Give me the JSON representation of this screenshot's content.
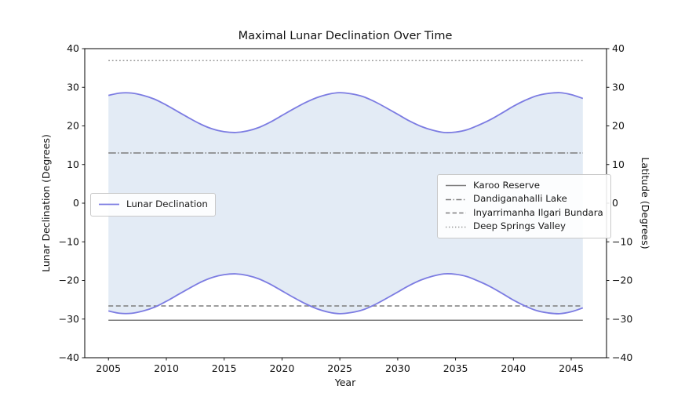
{
  "chart_data": {
    "type": "line",
    "title": "Maximal Lunar Declination Over Time",
    "xlabel": "Year",
    "ylabel_left": "Lunar Declination (Degrees)",
    "ylabel_right": "Latitude (Degrees)",
    "xlim": [
      2002.95,
      2048.05
    ],
    "ylim": [
      -40,
      40
    ],
    "x_ticks": [
      2005,
      2010,
      2015,
      2020,
      2025,
      2030,
      2035,
      2040,
      2045
    ],
    "y_ticks": [
      -40,
      -30,
      -20,
      -10,
      0,
      10,
      20,
      30,
      40
    ],
    "grid": false,
    "line_color": "#7c7ce2",
    "band_fill": "#e3ebf5",
    "legend1": {
      "label": "Lunar Declination",
      "position": "center left"
    },
    "series": [
      {
        "name": "Maximal Lunar Declination (north limit)",
        "x": [
          2005,
          2006,
          2007,
          2008,
          2009,
          2010,
          2011,
          2012,
          2013,
          2014,
          2015,
          2016,
          2017,
          2018,
          2019,
          2020,
          2021,
          2022,
          2023,
          2024,
          2025,
          2026,
          2027,
          2028,
          2029,
          2030,
          2031,
          2032,
          2033,
          2034,
          2035,
          2036,
          2037,
          2038,
          2039,
          2040,
          2041,
          2042,
          2043,
          2044,
          2045,
          2046
        ],
        "y": [
          27.9,
          28.5,
          28.5,
          27.9,
          26.9,
          25.4,
          23.7,
          22.0,
          20.4,
          19.2,
          18.5,
          18.3,
          18.7,
          19.6,
          21.0,
          22.7,
          24.4,
          26.0,
          27.3,
          28.2,
          28.6,
          28.3,
          27.6,
          26.3,
          24.7,
          23.0,
          21.3,
          19.9,
          18.9,
          18.3,
          18.4,
          19.0,
          20.2,
          21.6,
          23.3,
          25.1,
          26.6,
          27.8,
          28.4,
          28.6,
          28.1,
          27.1
        ]
      },
      {
        "name": "Maximal Lunar Declination (south limit)",
        "x": [
          2005,
          2006,
          2007,
          2008,
          2009,
          2010,
          2011,
          2012,
          2013,
          2014,
          2015,
          2016,
          2017,
          2018,
          2019,
          2020,
          2021,
          2022,
          2023,
          2024,
          2025,
          2026,
          2027,
          2028,
          2029,
          2030,
          2031,
          2032,
          2033,
          2034,
          2035,
          2036,
          2037,
          2038,
          2039,
          2040,
          2041,
          2042,
          2043,
          2044,
          2045,
          2046
        ],
        "y": [
          -27.9,
          -28.5,
          -28.5,
          -27.9,
          -26.9,
          -25.4,
          -23.7,
          -22.0,
          -20.4,
          -19.2,
          -18.5,
          -18.3,
          -18.7,
          -19.6,
          -21.0,
          -22.7,
          -24.4,
          -26.0,
          -27.3,
          -28.2,
          -28.6,
          -28.3,
          -27.6,
          -26.3,
          -24.7,
          -23.0,
          -21.3,
          -19.9,
          -18.9,
          -18.3,
          -18.4,
          -19.0,
          -20.2,
          -21.6,
          -23.3,
          -25.1,
          -26.6,
          -27.8,
          -28.4,
          -28.6,
          -28.1,
          -27.1
        ]
      }
    ],
    "reference_lines": [
      {
        "label": "Karoo Reserve",
        "latitude": -30.3,
        "style": "solid",
        "color": "#7d7d7d"
      },
      {
        "label": "Dandiganahalli Lake",
        "latitude": 13.0,
        "style": "dashdot",
        "color": "#7d7d7d"
      },
      {
        "label": "Inyarrimanha Ilgari Bundara",
        "latitude": -26.6,
        "style": "dashed",
        "color": "#7d7d7d"
      },
      {
        "label": "Deep Springs Valley",
        "latitude": 36.9,
        "style": "dotted",
        "color": "#969696"
      }
    ],
    "legend2_position": "center right"
  }
}
